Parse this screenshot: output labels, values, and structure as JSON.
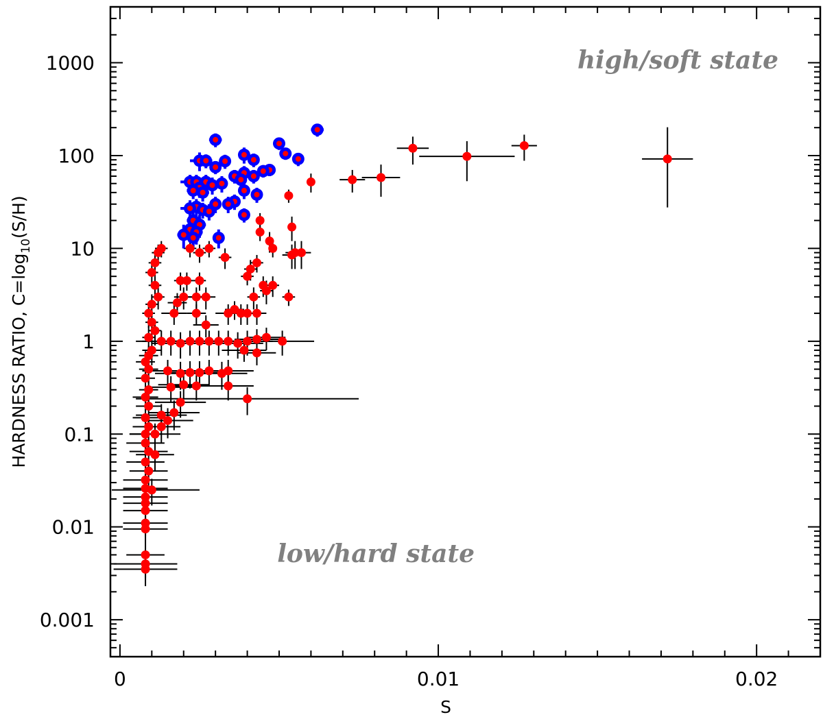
{
  "chart_data": {
    "type": "scatter",
    "title": "",
    "xlabel": "S",
    "ylabel_prefix": "HARDNESS RATIO,  C=log",
    "ylabel_sub": "10",
    "ylabel_suffix": "(S/H)",
    "xscale": "linear",
    "yscale": "log",
    "xlim": [
      -0.0003,
      0.022
    ],
    "ylim": [
      0.0004,
      4000
    ],
    "x_ticks": [
      {
        "value": 0,
        "label": "0"
      },
      {
        "value": 0.01,
        "label": "0.01"
      },
      {
        "value": 0.02,
        "label": "0.02"
      }
    ],
    "y_ticks": [
      {
        "value": 0.001,
        "label": "0.001"
      },
      {
        "value": 0.01,
        "label": "0.01"
      },
      {
        "value": 0.1,
        "label": "0.1"
      },
      {
        "value": 1,
        "label": "1"
      },
      {
        "value": 10,
        "label": "10"
      },
      {
        "value": 100,
        "label": "100"
      },
      {
        "value": 1000,
        "label": "1000"
      }
    ],
    "annotations": [
      {
        "text": "high/soft state",
        "x": 0.0149,
        "y": 800
      },
      {
        "text": "low/hard state",
        "x": 0.0052,
        "y": 0.0075
      }
    ],
    "series": [
      {
        "name": "low/hard (red)",
        "color": "#ff0000",
        "points": [
          [
            0.0073,
            55,
            0.0004,
            15
          ],
          [
            0.0082,
            58,
            0.0006,
            22
          ],
          [
            0.006,
            52,
            0.0001,
            12
          ],
          [
            0.0092,
            120,
            0.0005,
            40
          ],
          [
            0.0109,
            98,
            0.0015,
            45
          ],
          [
            0.0127,
            128,
            0.0004,
            40
          ],
          [
            0.0172,
            92,
            0.0008,
            110
          ],
          [
            0.0053,
            37,
            0.0001,
            6
          ],
          [
            0.0054,
            17,
            0.0001,
            5
          ],
          [
            0.0055,
            9,
            0.0003,
            3
          ],
          [
            0.0057,
            9,
            0.0003,
            3
          ],
          [
            0.0054,
            8.5,
            0.0003,
            2.5
          ],
          [
            0.0053,
            3,
            0.0002,
            0.6
          ],
          [
            0.0044,
            20,
            0.0001,
            4
          ],
          [
            0.0047,
            12,
            0.0001,
            3
          ],
          [
            0.0044,
            15,
            0.0001,
            3
          ],
          [
            0.0048,
            10,
            0.0001,
            2
          ],
          [
            0.0045,
            4,
            0.0001,
            1
          ],
          [
            0.0046,
            3.5,
            0.0002,
            1
          ],
          [
            0.0048,
            4,
            0.0002,
            1
          ],
          [
            0.0043,
            7,
            0.0002,
            1.5
          ],
          [
            0.0041,
            6,
            0.0002,
            1.5
          ],
          [
            0.0042,
            3,
            0.0002,
            0.8
          ],
          [
            0.004,
            5,
            0.0002,
            1
          ],
          [
            0.0038,
            2,
            0.0003,
            0.5
          ],
          [
            0.0036,
            2.2,
            0.0003,
            0.5
          ],
          [
            0.0034,
            2,
            0.0004,
            0.5
          ],
          [
            0.004,
            2,
            0.0003,
            0.5
          ],
          [
            0.0043,
            2,
            0.0003,
            0.5
          ],
          [
            0.0033,
            8,
            0.0002,
            2
          ],
          [
            0.0028,
            10,
            0.0002,
            2
          ],
          [
            0.0025,
            9,
            0.0002,
            2
          ],
          [
            0.0022,
            10,
            0.0002,
            2
          ],
          [
            0.0021,
            4.5,
            0.0002,
            1
          ],
          [
            0.0025,
            4.5,
            0.0002,
            1
          ],
          [
            0.0019,
            4.5,
            0.0002,
            1
          ],
          [
            0.0027,
            3,
            0.0003,
            0.8
          ],
          [
            0.0024,
            3,
            0.0003,
            0.8
          ],
          [
            0.002,
            3,
            0.0003,
            0.8
          ],
          [
            0.0018,
            2.6,
            0.0003,
            0.7
          ],
          [
            0.0017,
            2.0,
            0.0004,
            0.5
          ],
          [
            0.0024,
            2.0,
            0.0003,
            0.5
          ],
          [
            0.0027,
            1.5,
            0.0004,
            0.4
          ],
          [
            0.0046,
            1.1,
            0.0006,
            0.3
          ],
          [
            0.0051,
            1.0,
            0.001,
            0.3
          ],
          [
            0.0043,
            1.05,
            0.0007,
            0.3
          ],
          [
            0.004,
            1.0,
            0.0008,
            0.3
          ],
          [
            0.0037,
            0.95,
            0.0008,
            0.3
          ],
          [
            0.0034,
            1.0,
            0.0008,
            0.3
          ],
          [
            0.0031,
            1.0,
            0.0009,
            0.3
          ],
          [
            0.0028,
            1.0,
            0.0009,
            0.3
          ],
          [
            0.0025,
            1.0,
            0.0009,
            0.3
          ],
          [
            0.0022,
            1.0,
            0.0009,
            0.3
          ],
          [
            0.0019,
            0.95,
            0.0009,
            0.3
          ],
          [
            0.0016,
            1.0,
            0.0009,
            0.3
          ],
          [
            0.0013,
            1.0,
            0.0008,
            0.3
          ],
          [
            0.0043,
            0.75,
            0.0006,
            0.2
          ],
          [
            0.0039,
            0.8,
            0.0007,
            0.2
          ],
          [
            0.0034,
            0.48,
            0.0008,
            0.15
          ],
          [
            0.0032,
            0.45,
            0.0008,
            0.15
          ],
          [
            0.0028,
            0.48,
            0.0008,
            0.15
          ],
          [
            0.0025,
            0.46,
            0.0008,
            0.15
          ],
          [
            0.0022,
            0.46,
            0.0008,
            0.15
          ],
          [
            0.0019,
            0.45,
            0.0008,
            0.15
          ],
          [
            0.0015,
            0.48,
            0.0008,
            0.15
          ],
          [
            0.0034,
            0.33,
            0.0008,
            0.1
          ],
          [
            0.0024,
            0.33,
            0.0008,
            0.1
          ],
          [
            0.002,
            0.34,
            0.0008,
            0.1
          ],
          [
            0.0016,
            0.32,
            0.0008,
            0.1
          ],
          [
            0.004,
            0.24,
            0.0035,
            0.08
          ],
          [
            0.0019,
            0.22,
            0.0008,
            0.07
          ],
          [
            0.0017,
            0.17,
            0.0008,
            0.06
          ],
          [
            0.0015,
            0.14,
            0.0008,
            0.05
          ],
          [
            0.0013,
            0.16,
            0.0008,
            0.05
          ],
          [
            0.0011,
            0.1,
            0.0008,
            0.03
          ],
          [
            0.001,
            5.5,
            0.0002,
            1.5
          ],
          [
            0.0011,
            7,
            0.0002,
            2
          ],
          [
            0.0012,
            9,
            0.0002,
            2
          ],
          [
            0.0013,
            10,
            0.0002,
            2
          ],
          [
            0.0011,
            4,
            0.0002,
            1
          ],
          [
            0.0012,
            3,
            0.0002,
            0.8
          ],
          [
            0.001,
            2.5,
            0.0002,
            0.7
          ],
          [
            0.0009,
            2,
            0.0002,
            0.6
          ],
          [
            0.001,
            1.6,
            0.0002,
            0.5
          ],
          [
            0.0011,
            1.3,
            0.0002,
            0.4
          ],
          [
            0.0009,
            1.1,
            0.0002,
            0.35
          ],
          [
            0.001,
            0.8,
            0.0003,
            0.25
          ],
          [
            0.0009,
            0.7,
            0.0003,
            0.2
          ],
          [
            0.0008,
            0.6,
            0.0003,
            0.18
          ],
          [
            0.0009,
            0.5,
            0.0003,
            0.15
          ],
          [
            0.0008,
            0.4,
            0.0003,
            0.12
          ],
          [
            0.0009,
            0.3,
            0.0003,
            0.1
          ],
          [
            0.0008,
            0.25,
            0.0004,
            0.08
          ],
          [
            0.0009,
            0.2,
            0.0004,
            0.07
          ],
          [
            0.0008,
            0.15,
            0.0004,
            0.05
          ],
          [
            0.0009,
            0.12,
            0.0005,
            0.04
          ],
          [
            0.0008,
            0.1,
            0.0005,
            0.03
          ],
          [
            0.0008,
            0.08,
            0.0006,
            0.025
          ],
          [
            0.0009,
            0.065,
            0.0006,
            0.02
          ],
          [
            0.0008,
            0.05,
            0.0006,
            0.017
          ],
          [
            0.0009,
            0.04,
            0.0006,
            0.013
          ],
          [
            0.0008,
            0.032,
            0.0007,
            0.01
          ],
          [
            0.0008,
            0.026,
            0.0007,
            0.008
          ],
          [
            0.0008,
            0.021,
            0.0007,
            0.007
          ],
          [
            0.0008,
            0.018,
            0.0007,
            0.006
          ],
          [
            0.0008,
            0.015,
            0.0007,
            0.005
          ],
          [
            0.0008,
            0.011,
            0.0007,
            0.003
          ],
          [
            0.0008,
            0.0095,
            0.0007,
            0.003
          ],
          [
            0.0008,
            0.005,
            0.0006,
            0.0015
          ],
          [
            0.0008,
            0.004,
            0.001,
            0.0012
          ],
          [
            0.0008,
            0.0035,
            0.001,
            0.0012
          ],
          [
            0.0013,
            0.12,
            0.0006,
            0.04
          ],
          [
            0.0011,
            0.06,
            0.0006,
            0.02
          ],
          [
            0.001,
            0.025,
            0.0015,
            0.008
          ]
        ]
      },
      {
        "name": "high/soft (blue)",
        "color": "#0000ff",
        "points": [
          [
            0.0062,
            190,
            0.0002,
            30
          ],
          [
            0.003,
            148,
            0.0002,
            25
          ],
          [
            0.005,
            135,
            0.0001,
            20
          ],
          [
            0.0052,
            105,
            0.0001,
            15
          ],
          [
            0.0056,
            92,
            0.0001,
            15
          ],
          [
            0.0039,
            102,
            0.0001,
            20
          ],
          [
            0.0042,
            90,
            0.0001,
            15
          ],
          [
            0.0025,
            88,
            0.0003,
            20
          ],
          [
            0.0027,
            88,
            0.0002,
            15
          ],
          [
            0.0033,
            87,
            0.0001,
            15
          ],
          [
            0.003,
            75,
            0.0001,
            12
          ],
          [
            0.0047,
            70,
            0.0001,
            10
          ],
          [
            0.0045,
            68,
            0.0001,
            10
          ],
          [
            0.0039,
            65,
            0.0001,
            12
          ],
          [
            0.0042,
            60,
            0.0001,
            10
          ],
          [
            0.0036,
            60,
            0.0001,
            10
          ],
          [
            0.0022,
            52,
            0.0003,
            10
          ],
          [
            0.0024,
            52,
            0.0002,
            10
          ],
          [
            0.0027,
            52,
            0.0002,
            10
          ],
          [
            0.0032,
            50,
            0.0001,
            10
          ],
          [
            0.0038,
            55,
            0.0001,
            10
          ],
          [
            0.0029,
            48,
            0.0002,
            10
          ],
          [
            0.0025,
            45,
            0.0002,
            10
          ],
          [
            0.0023,
            42,
            0.0002,
            8
          ],
          [
            0.0026,
            40,
            0.0002,
            8
          ],
          [
            0.0039,
            42,
            0.0001,
            8
          ],
          [
            0.0043,
            38,
            0.0001,
            7
          ],
          [
            0.0036,
            32,
            0.0001,
            6
          ],
          [
            0.003,
            30,
            0.0001,
            6
          ],
          [
            0.0034,
            30,
            0.0001,
            6
          ],
          [
            0.0024,
            28,
            0.0002,
            6
          ],
          [
            0.0022,
            27,
            0.0003,
            6
          ],
          [
            0.0026,
            26,
            0.0002,
            5
          ],
          [
            0.0028,
            25,
            0.0002,
            5
          ],
          [
            0.0039,
            23,
            0.0001,
            4
          ],
          [
            0.0023,
            20,
            0.0002,
            5
          ],
          [
            0.0025,
            18,
            0.0002,
            5
          ],
          [
            0.0022,
            16,
            0.0002,
            4
          ],
          [
            0.002,
            14,
            0.0002,
            4
          ],
          [
            0.0024,
            15,
            0.0002,
            4
          ],
          [
            0.0031,
            13,
            0.0001,
            3
          ],
          [
            0.0023,
            13,
            0.0002,
            3
          ]
        ]
      }
    ]
  }
}
